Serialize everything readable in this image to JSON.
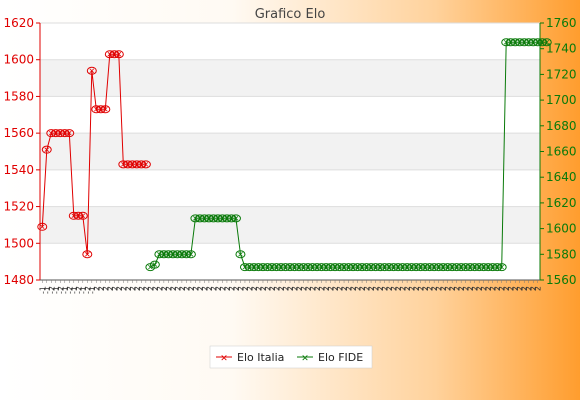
{
  "chart_data": {
    "type": "line",
    "title": "Grafico Elo",
    "y_left": {
      "ticks": [
        1480,
        1500,
        1520,
        1540,
        1560,
        1580,
        1600,
        1620
      ],
      "lim": [
        1480,
        1620
      ],
      "color": "#e00000"
    },
    "y_right": {
      "ticks": [
        1560,
        1580,
        1600,
        1620,
        1640,
        1660,
        1680,
        1700,
        1720,
        1740,
        1760
      ],
      "lim": [
        1560,
        1760
      ],
      "color": "#0a7a0a"
    },
    "x_count": 111,
    "x_tick_labels": [
      "-1",
      "-1",
      "-2",
      "-1",
      "-2",
      "-1",
      "-2",
      "-1",
      "-2",
      "-1",
      "-2",
      "-1",
      "2",
      "2",
      "2",
      "2",
      "2",
      "2",
      "2",
      "2",
      "2",
      "2",
      "2",
      "2",
      "2",
      "2",
      "2",
      "2",
      "2",
      "2",
      "2",
      "2",
      "2",
      "2",
      "2",
      "2",
      "2",
      "2",
      "2",
      "2",
      "2",
      "2",
      "2",
      "2",
      "2",
      "2",
      "2",
      "2",
      "2",
      "2",
      "2",
      "2",
      "2",
      "2",
      "2",
      "2",
      "2",
      "2",
      "2",
      "2",
      "2",
      "2",
      "2",
      "2",
      "2",
      "2",
      "2",
      "2",
      "2",
      "2",
      "2",
      "2",
      "2",
      "2",
      "2",
      "2",
      "2",
      "2",
      "2",
      "2",
      "2",
      "2",
      "2",
      "2",
      "2",
      "2",
      "2",
      "2",
      "2",
      "2",
      "2",
      "2",
      "2",
      "2",
      "2",
      "2",
      "2",
      "2",
      "2",
      "2",
      "2",
      "2",
      "2",
      "2",
      "2",
      "2",
      "2",
      "2",
      "2",
      "2",
      "2"
    ],
    "series": [
      {
        "name": "Elo Italia",
        "axis": "left",
        "color": "#e00000",
        "values": [
          1509,
          1551,
          1560,
          1560,
          1560,
          1560,
          1560,
          1515,
          1515,
          1515,
          1494,
          1594,
          1573,
          1573,
          1573,
          1603,
          1603,
          1603,
          1543,
          1543,
          1543,
          1543,
          1543,
          1543
        ]
      },
      {
        "name": "Elo FIDE",
        "axis": "right",
        "color": "#0a7a0a",
        "values": [
          null,
          null,
          null,
          null,
          null,
          null,
          null,
          null,
          null,
          null,
          null,
          null,
          null,
          null,
          null,
          null,
          null,
          null,
          null,
          null,
          null,
          null,
          null,
          null,
          1570,
          1572,
          1580,
          1580,
          1580,
          1580,
          1580,
          1580,
          1580,
          1580,
          1608,
          1608,
          1608,
          1608,
          1608,
          1608,
          1608,
          1608,
          1608,
          1608,
          1580,
          1570,
          1570,
          1570,
          1570,
          1570,
          1570,
          1570,
          1570,
          1570,
          1570,
          1570,
          1570,
          1570,
          1570,
          1570,
          1570,
          1570,
          1570,
          1570,
          1570,
          1570,
          1570,
          1570,
          1570,
          1570,
          1570,
          1570,
          1570,
          1570,
          1570,
          1570,
          1570,
          1570,
          1570,
          1570,
          1570,
          1570,
          1570,
          1570,
          1570,
          1570,
          1570,
          1570,
          1570,
          1570,
          1570,
          1570,
          1570,
          1570,
          1570,
          1570,
          1570,
          1570,
          1570,
          1570,
          1570,
          1570,
          1570,
          1745,
          1745,
          1745,
          1745,
          1745,
          1745,
          1745,
          1745,
          1745,
          1745
        ]
      }
    ],
    "grid": true,
    "legend_position": "bottom"
  }
}
